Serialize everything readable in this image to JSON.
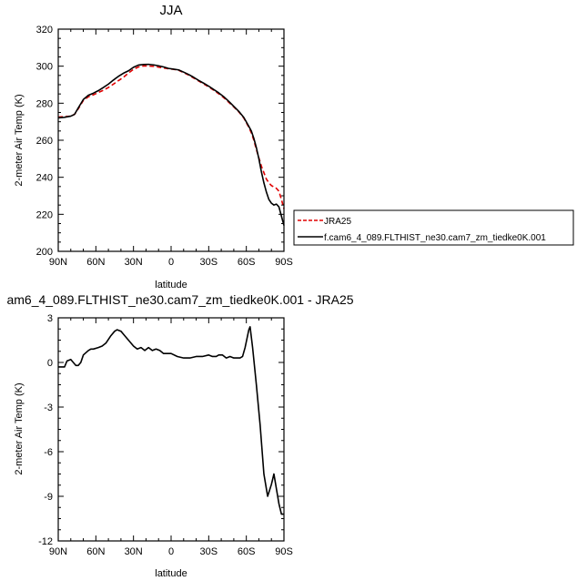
{
  "chart_data": [
    {
      "type": "line",
      "title": "JJA",
      "xlabel": "latitude",
      "ylabel": "2-meter Air Temp (K)",
      "x_ticks": [
        90,
        60,
        30,
        0,
        -30,
        -60,
        -90
      ],
      "x_tick_labels": [
        "90N",
        "60N",
        "30N",
        "0",
        "30S",
        "60S",
        "90S"
      ],
      "xlim": [
        90,
        -90
      ],
      "y_ticks": [
        200,
        220,
        240,
        260,
        280,
        300,
        320
      ],
      "y_tick_labels": [
        "200",
        "220",
        "240",
        "260",
        "280",
        "300",
        "320"
      ],
      "ylim": [
        200,
        320
      ],
      "legend": {
        "placement": "right",
        "entries": [
          "JRA25",
          "f.cam6_4_089.FLTHIST_ne30.cam7_zm_tiedke0K.001"
        ]
      },
      "series": [
        {
          "name": "JRA25",
          "color": "#e00000",
          "dash": true,
          "x": [
            90,
            85,
            80,
            77,
            74,
            70,
            66,
            62,
            58,
            54,
            50,
            46,
            42,
            38,
            34,
            30,
            26,
            22,
            18,
            14,
            10,
            6,
            2,
            -2,
            -6,
            -10,
            -14,
            -18,
            -22,
            -26,
            -30,
            -34,
            -38,
            -42,
            -46,
            -50,
            -54,
            -58,
            -62,
            -64,
            -66,
            -68,
            -70,
            -72,
            -74,
            -76,
            -78,
            -80,
            -82,
            -84,
            -86,
            -88,
            -90
          ],
          "values": [
            272.5,
            272.8,
            273.0,
            274.0,
            277.0,
            281.5,
            283.5,
            284.5,
            285.8,
            287.0,
            288.5,
            290.3,
            292.2,
            294.0,
            296.3,
            298.3,
            299.6,
            300.1,
            300.1,
            299.9,
            299.5,
            299.0,
            298.6,
            298.3,
            297.8,
            296.5,
            295.2,
            293.6,
            292.0,
            290.4,
            288.8,
            287.0,
            285.1,
            283.0,
            280.5,
            278.0,
            275.3,
            272.0,
            267.0,
            264.0,
            260.0,
            255.0,
            250.5,
            246.0,
            242.5,
            239.0,
            237.0,
            235.5,
            234.8,
            234.0,
            232.5,
            228.0,
            223.0
          ]
        },
        {
          "name": "f.cam6_4_089.FLTHIST_ne30.cam7_zm_tiedke0K.001",
          "color": "#000000",
          "dash": false,
          "x": [
            90,
            85,
            80,
            77,
            74,
            70,
            66,
            62,
            58,
            54,
            50,
            46,
            42,
            38,
            34,
            30,
            26,
            22,
            18,
            14,
            10,
            6,
            2,
            -2,
            -6,
            -10,
            -14,
            -18,
            -22,
            -26,
            -30,
            -34,
            -38,
            -42,
            -46,
            -50,
            -54,
            -58,
            -62,
            -64,
            -66,
            -68,
            -70,
            -72,
            -74,
            -76,
            -78,
            -80,
            -82,
            -84,
            -86,
            -88,
            -90
          ],
          "values": [
            272.1,
            272.4,
            273.0,
            274.0,
            277.5,
            282.0,
            284.3,
            285.4,
            286.8,
            288.5,
            290.3,
            292.5,
            294.5,
            296.2,
            297.5,
            299.4,
            300.6,
            300.9,
            301.0,
            300.7,
            300.2,
            299.6,
            298.8,
            298.4,
            298.0,
            296.8,
            295.5,
            294.0,
            292.3,
            290.8,
            289.2,
            287.4,
            285.6,
            283.5,
            281.0,
            278.3,
            275.6,
            272.3,
            267.5,
            265.0,
            261.0,
            256.0,
            250.0,
            243.0,
            237.0,
            232.0,
            228.0,
            226.0,
            225.0,
            225.5,
            224.0,
            219.0,
            214.0
          ]
        }
      ]
    },
    {
      "type": "line",
      "title": "am6_4_089.FLTHIST_ne30.cam7_zm_tiedke0K.001 - JRA25",
      "xlabel": "latitude",
      "ylabel": "2-meter Air Temp (K)",
      "x_ticks": [
        90,
        60,
        30,
        0,
        -30,
        -60,
        -90
      ],
      "x_tick_labels": [
        "90N",
        "60N",
        "30N",
        "0",
        "30S",
        "60S",
        "90S"
      ],
      "xlim": [
        90,
        -90
      ],
      "y_ticks": [
        3,
        0,
        -3,
        -6,
        -9,
        -12
      ],
      "y_tick_labels": [
        "3",
        "0",
        "-3",
        "-6",
        "-9",
        "-12"
      ],
      "ylim": [
        -12,
        3
      ],
      "series": [
        {
          "color": "#000000",
          "x": [
            90,
            87,
            85,
            83,
            80,
            78,
            76,
            74,
            72,
            70,
            66,
            64,
            62,
            58,
            55,
            52,
            48,
            45,
            43,
            40,
            38,
            35,
            30,
            27,
            24,
            21,
            18,
            15,
            12,
            9,
            6,
            3,
            0,
            -5,
            -10,
            -15,
            -20,
            -25,
            -30,
            -33,
            -36,
            -38,
            -41,
            -44,
            -47,
            -50,
            -55,
            -57,
            -59,
            -60,
            -62,
            -63,
            -65,
            -68,
            -71,
            -74,
            -77,
            -80,
            -82,
            -84,
            -86,
            -88,
            -90
          ],
          "values": [
            -0.3,
            -0.3,
            -0.3,
            0.1,
            0.2,
            0.0,
            -0.2,
            -0.2,
            0.0,
            0.5,
            0.8,
            0.9,
            0.9,
            1.0,
            1.1,
            1.3,
            1.8,
            2.1,
            2.2,
            2.1,
            1.9,
            1.6,
            1.1,
            0.9,
            1.0,
            0.8,
            1.0,
            0.8,
            0.9,
            0.8,
            0.6,
            0.6,
            0.6,
            0.4,
            0.3,
            0.3,
            0.4,
            0.4,
            0.5,
            0.4,
            0.4,
            0.5,
            0.5,
            0.3,
            0.4,
            0.3,
            0.3,
            0.4,
            1.0,
            1.4,
            2.2,
            2.4,
            1.0,
            -1.5,
            -4.2,
            -7.5,
            -9.0,
            -8.2,
            -7.5,
            -8.5,
            -9.5,
            -10.2,
            -10.2
          ]
        }
      ]
    }
  ]
}
